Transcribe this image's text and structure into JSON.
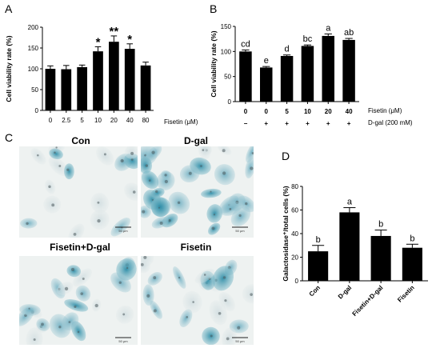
{
  "panels": {
    "A": "A",
    "B": "B",
    "C": "C",
    "D": "D"
  },
  "micro_labels": [
    "Con",
    "D-gal",
    "Fisetin+D-gal",
    "Fisetin"
  ],
  "scale_bar": "50 μm",
  "chart_data": [
    {
      "panel": "A",
      "type": "bar",
      "ylabel": "Cell viability rate (%)",
      "xlabel": "Fisetin (μM)",
      "categories": [
        "0",
        "2.5",
        "5",
        "10",
        "20",
        "40",
        "80"
      ],
      "values": [
        100,
        99,
        104,
        142,
        165,
        148,
        108
      ],
      "errors": [
        7,
        9,
        5,
        11,
        14,
        12,
        8
      ],
      "annotations": [
        "",
        "",
        "",
        "*",
        "**",
        "*",
        ""
      ],
      "ylim": [
        0,
        200
      ],
      "yticks": [
        0,
        50,
        100,
        150,
        200
      ]
    },
    {
      "panel": "B",
      "type": "bar",
      "ylabel": "Cell viability rate (%)",
      "row_labels": [
        "Fisetin (μM)",
        "D-gal (200 mM)"
      ],
      "categories": [
        "0",
        "0",
        "5",
        "10",
        "20",
        "40"
      ],
      "dgal": [
        "−",
        "+",
        "+",
        "+",
        "+",
        "+"
      ],
      "values": [
        100,
        68,
        91,
        111,
        131,
        123
      ],
      "errors": [
        3,
        2,
        2,
        2,
        4,
        3
      ],
      "annotations": [
        "cd",
        "e",
        "d",
        "bc",
        "a",
        "ab"
      ],
      "ylim": [
        0,
        150
      ],
      "yticks": [
        0,
        50,
        100,
        150
      ]
    },
    {
      "panel": "D",
      "type": "bar",
      "ylabel": "Galactosidase⁺/total cells (%)",
      "categories": [
        "Con",
        "D-gal",
        "Fisetin+D-gal",
        "Fisetin"
      ],
      "values": [
        25,
        58,
        38,
        28
      ],
      "errors": [
        5,
        4,
        5,
        3
      ],
      "annotations": [
        "b",
        "a",
        "b",
        "b"
      ],
      "ylim": [
        0,
        80
      ],
      "yticks": [
        0,
        20,
        40,
        60,
        80
      ]
    }
  ]
}
